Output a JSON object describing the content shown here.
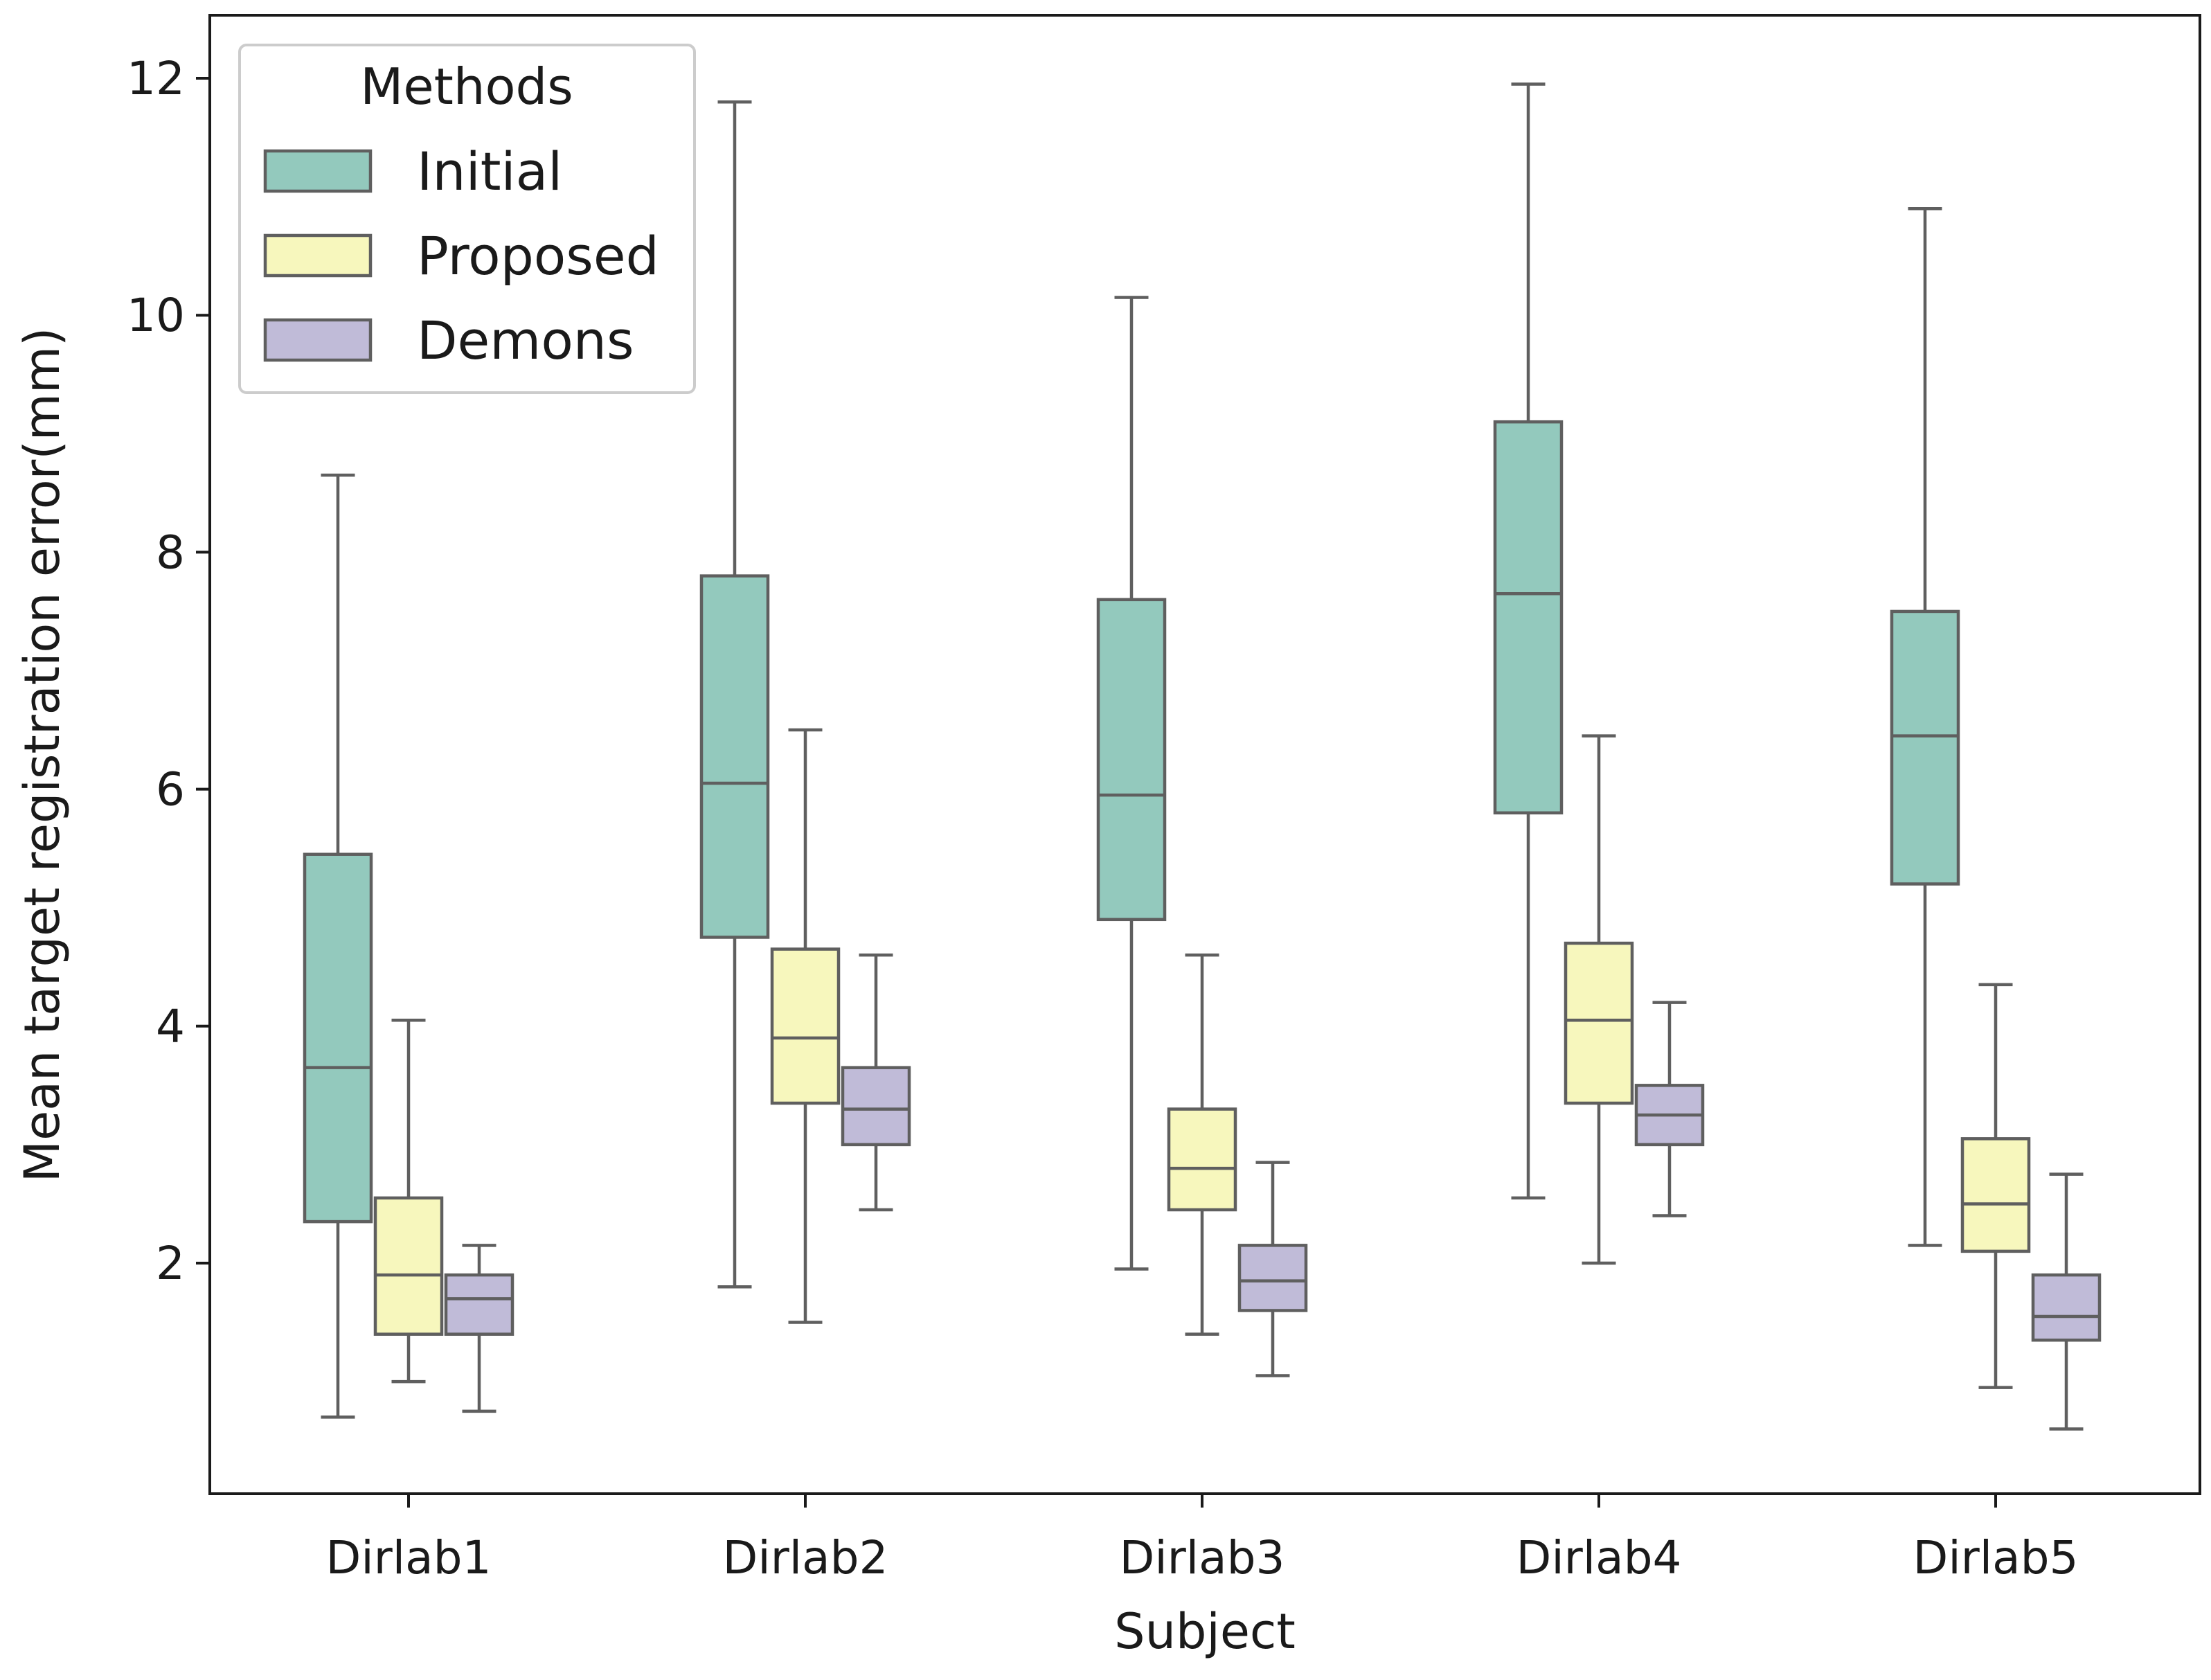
{
  "chart_data": {
    "type": "box",
    "title": "",
    "xlabel": "Subject",
    "ylabel": "Mean target registration error(mm)",
    "ylim": [
      0.0,
      12.5
    ],
    "yticks": [
      2,
      4,
      6,
      8,
      10,
      12
    ],
    "yticklabels": [
      "2",
      "4",
      "6",
      "8",
      "10",
      "12"
    ],
    "categories": [
      "Dirlab1",
      "Dirlab2",
      "Dirlab3",
      "Dirlab4",
      "Dirlab5"
    ],
    "legend": {
      "title": "Methods",
      "position": "top-left"
    },
    "series": [
      {
        "name": "Initial",
        "color": "#93c9bd",
        "boxes": [
          {
            "whisker_low": 0.7,
            "q1": 2.35,
            "median": 3.65,
            "q3": 5.45,
            "whisker_high": 8.65
          },
          {
            "whisker_low": 1.8,
            "q1": 4.75,
            "median": 6.05,
            "q3": 7.8,
            "whisker_high": 11.8
          },
          {
            "whisker_low": 1.95,
            "q1": 4.9,
            "median": 5.95,
            "q3": 7.6,
            "whisker_high": 10.15
          },
          {
            "whisker_low": 2.55,
            "q1": 5.8,
            "median": 7.65,
            "q3": 9.1,
            "whisker_high": 11.95
          },
          {
            "whisker_low": 2.15,
            "q1": 5.2,
            "median": 6.45,
            "q3": 7.5,
            "whisker_high": 10.9
          }
        ]
      },
      {
        "name": "Proposed",
        "color": "#f7f7bd",
        "boxes": [
          {
            "whisker_low": 1.0,
            "q1": 1.4,
            "median": 1.9,
            "q3": 2.55,
            "whisker_high": 4.05
          },
          {
            "whisker_low": 1.5,
            "q1": 3.35,
            "median": 3.9,
            "q3": 4.65,
            "whisker_high": 6.5
          },
          {
            "whisker_low": 1.4,
            "q1": 2.45,
            "median": 2.8,
            "q3": 3.3,
            "whisker_high": 4.6
          },
          {
            "whisker_low": 2.0,
            "q1": 3.35,
            "median": 4.05,
            "q3": 4.7,
            "whisker_high": 6.45
          },
          {
            "whisker_low": 0.95,
            "q1": 2.1,
            "median": 2.5,
            "q3": 3.05,
            "whisker_high": 4.35
          }
        ]
      },
      {
        "name": "Demons",
        "color": "#c0bbd8",
        "boxes": [
          {
            "whisker_low": 0.75,
            "q1": 1.4,
            "median": 1.7,
            "q3": 1.9,
            "whisker_high": 2.15
          },
          {
            "whisker_low": 2.45,
            "q1": 3.0,
            "median": 3.3,
            "q3": 3.65,
            "whisker_high": 4.6
          },
          {
            "whisker_low": 1.05,
            "q1": 1.6,
            "median": 1.85,
            "q3": 2.15,
            "whisker_high": 2.85
          },
          {
            "whisker_low": 2.4,
            "q1": 3.0,
            "median": 3.25,
            "q3": 3.5,
            "whisker_high": 4.2
          },
          {
            "whisker_low": 0.6,
            "q1": 1.35,
            "median": 1.55,
            "q3": 1.9,
            "whisker_high": 2.75
          }
        ]
      }
    ]
  }
}
